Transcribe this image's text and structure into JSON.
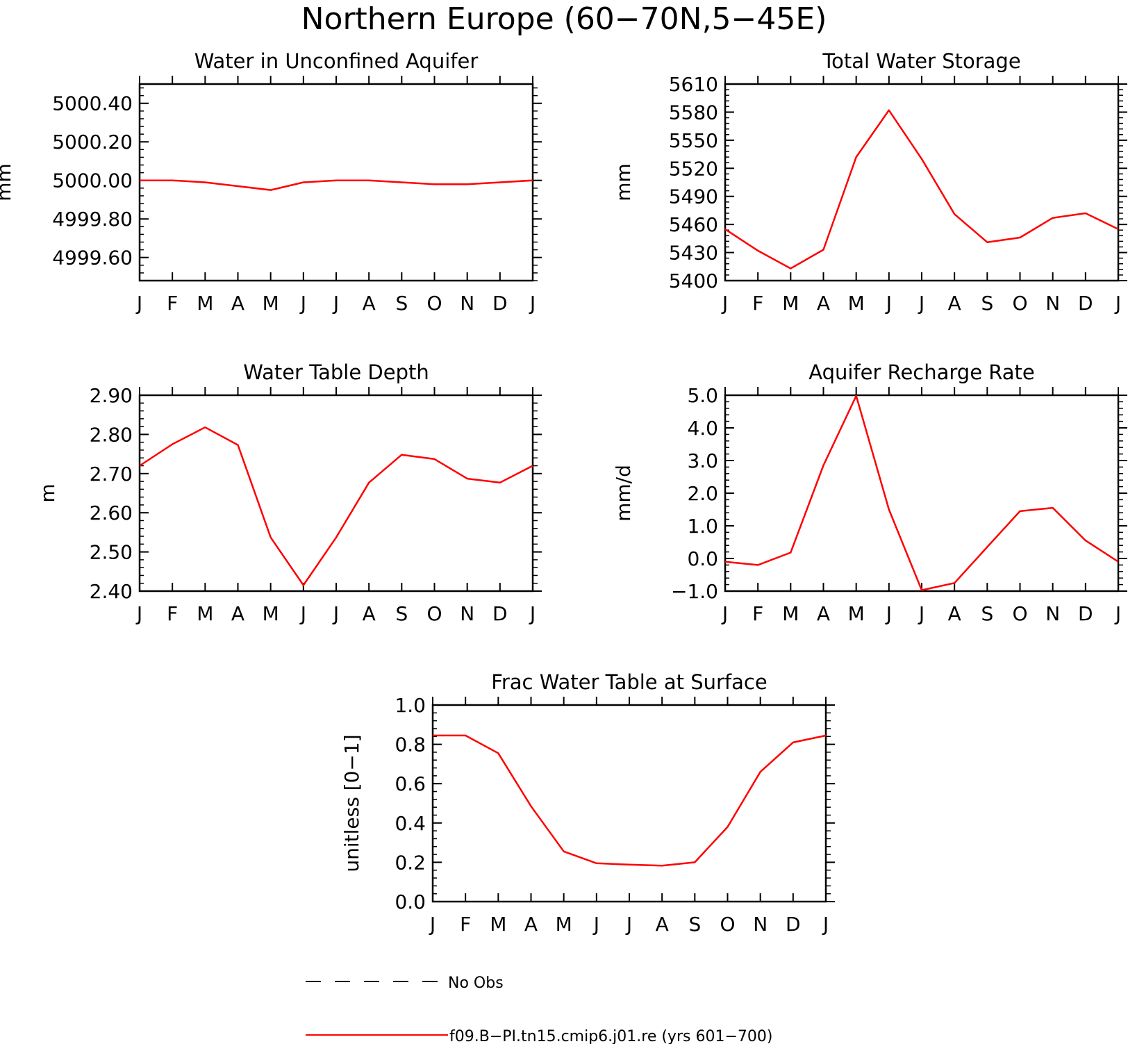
{
  "title": "Northern Europe (60−70N,5−45E)",
  "line_color": "#ff0000",
  "legend": [
    {
      "label": "No Obs",
      "style": "dashed",
      "color": "#000000"
    },
    {
      "label": "f09.B−PI.tn15.cmip6.j01.re (yrs 601−700)",
      "style": "solid",
      "color": "#ff0000"
    }
  ],
  "chart_data": [
    {
      "type": "line",
      "title": "Water in Unconfined Aquifer",
      "ylabel": "mm",
      "categories": [
        "J",
        "F",
        "M",
        "A",
        "M",
        "J",
        "J",
        "A",
        "S",
        "O",
        "N",
        "D",
        "J"
      ],
      "ylim": [
        4999.48,
        5000.5
      ],
      "yticks": [
        4999.6,
        4999.8,
        5000.0,
        5000.2,
        5000.4
      ],
      "ytick_labels": [
        "4999.60",
        "4999.80",
        "5000.00",
        "5000.20",
        "5000.40"
      ],
      "yminor_step": 0.04,
      "series": [
        {
          "values": [
            5000.0,
            5000.0,
            4999.99,
            4999.97,
            4999.95,
            4999.99,
            5000.0,
            5000.0,
            4999.99,
            4999.98,
            4999.98,
            4999.99,
            5000.0
          ]
        }
      ]
    },
    {
      "type": "line",
      "title": "Total Water Storage",
      "ylabel": "mm",
      "categories": [
        "J",
        "F",
        "M",
        "A",
        "M",
        "J",
        "J",
        "A",
        "S",
        "O",
        "N",
        "D",
        "J"
      ],
      "ylim": [
        5400,
        5610
      ],
      "yticks": [
        5400,
        5430,
        5460,
        5490,
        5520,
        5550,
        5580,
        5610
      ],
      "ytick_labels": [
        "5400",
        "5430",
        "5460",
        "5490",
        "5520",
        "5550",
        "5580",
        "5610"
      ],
      "yminor_step": 6,
      "series": [
        {
          "values": [
            5455,
            5432,
            5413,
            5433,
            5532,
            5582,
            5530,
            5471,
            5441,
            5446,
            5467,
            5472,
            5455
          ]
        }
      ]
    },
    {
      "type": "line",
      "title": "Water Table Depth",
      "ylabel": "m",
      "categories": [
        "J",
        "F",
        "M",
        "A",
        "M",
        "J",
        "J",
        "A",
        "S",
        "O",
        "N",
        "D",
        "J"
      ],
      "ylim": [
        2.4,
        2.9
      ],
      "yticks": [
        2.4,
        2.5,
        2.6,
        2.7,
        2.8,
        2.9
      ],
      "ytick_labels": [
        "2.40",
        "2.50",
        "2.60",
        "2.70",
        "2.80",
        "2.90"
      ],
      "yminor_step": 0.02,
      "series": [
        {
          "values": [
            2.72,
            2.775,
            2.818,
            2.773,
            2.537,
            2.415,
            2.537,
            2.677,
            2.748,
            2.737,
            2.687,
            2.677,
            2.72
          ]
        }
      ]
    },
    {
      "type": "line",
      "title": "Aquifer Recharge Rate",
      "ylabel": "mm/d",
      "categories": [
        "J",
        "F",
        "M",
        "A",
        "M",
        "J",
        "J",
        "A",
        "S",
        "O",
        "N",
        "D",
        "J"
      ],
      "ylim": [
        -1.0,
        5.0
      ],
      "yticks": [
        -1.0,
        0.0,
        1.0,
        2.0,
        3.0,
        4.0,
        5.0
      ],
      "ytick_labels": [
        "−1.0",
        "0.0",
        "1.0",
        "2.0",
        "3.0",
        "4.0",
        "5.0"
      ],
      "yminor_step": 0.2,
      "series": [
        {
          "values": [
            -0.1,
            -0.2,
            0.18,
            2.85,
            4.98,
            1.5,
            -0.97,
            -0.75,
            0.35,
            1.45,
            1.55,
            0.55,
            -0.1
          ]
        }
      ]
    },
    {
      "type": "line",
      "title": "Frac Water Table at Surface",
      "ylabel": "unitless [0−1]",
      "categories": [
        "J",
        "F",
        "M",
        "A",
        "M",
        "J",
        "J",
        "A",
        "S",
        "O",
        "N",
        "D",
        "J"
      ],
      "ylim": [
        0.0,
        1.0
      ],
      "yticks": [
        0.0,
        0.2,
        0.4,
        0.6,
        0.8,
        1.0
      ],
      "ytick_labels": [
        "0.0",
        "0.2",
        "0.4",
        "0.6",
        "0.8",
        "1.0"
      ],
      "yminor_step": 0.04,
      "series": [
        {
          "values": [
            0.845,
            0.845,
            0.755,
            0.485,
            0.255,
            0.195,
            0.188,
            0.183,
            0.2,
            0.38,
            0.66,
            0.81,
            0.845
          ]
        }
      ]
    }
  ]
}
